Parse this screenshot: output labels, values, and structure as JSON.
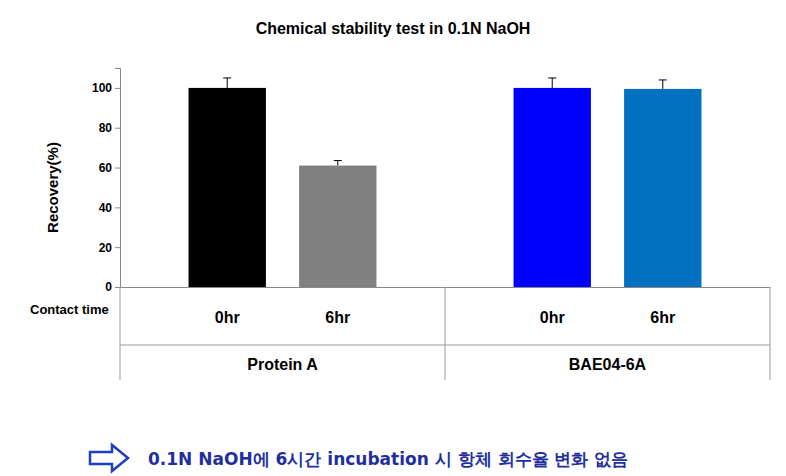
{
  "chart_data": {
    "type": "bar",
    "title": "Chemical stability test in 0.1N NaOH",
    "y_label": "Recovery(%)",
    "x_label": "Contact time",
    "categories": [
      "0hr",
      "6hr",
      "0hr",
      "6hr"
    ],
    "groups": [
      "Protein A",
      "BAE04-6A"
    ],
    "values": [
      100,
      61,
      100,
      99.5
    ],
    "errors": [
      5,
      2.5,
      5,
      4.5
    ],
    "colors": [
      "#000000",
      "#808080",
      "#0000ff",
      "#0070c0"
    ],
    "ylim": [
      0,
      110
    ],
    "yticks": [
      0,
      20,
      40,
      60,
      80,
      100
    ],
    "grid": false,
    "annotation": "0.1N NaOH에 6시간 incubation 시 항체 회수율 변화 없음"
  }
}
